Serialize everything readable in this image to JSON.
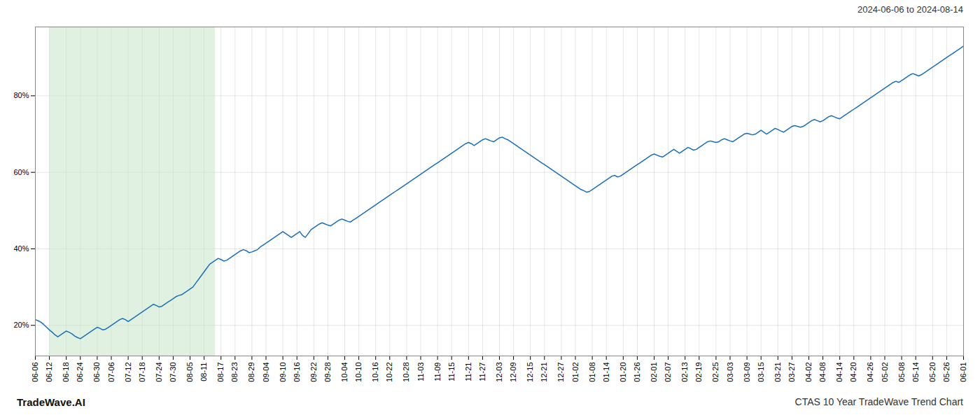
{
  "chart_data": {
    "type": "line",
    "title": "CTAS 10 Year TradeWave Trend Chart",
    "subtitle": "2024-06-06 to 2024-08-14",
    "annotations": [
      "TradeWave.AI"
    ],
    "color": "#1a6fba",
    "grid": true,
    "ylim": [
      12,
      98
    ],
    "yticks": [
      {
        "value": 20,
        "label": "20%"
      },
      {
        "value": 40,
        "label": "40%"
      },
      {
        "value": 60,
        "label": "60%"
      },
      {
        "value": 80,
        "label": "80%"
      }
    ],
    "shaded_span": {
      "from": 5,
      "to": 64,
      "color": "#c8e6c8"
    },
    "categories": [
      "06-06",
      null,
      null,
      null,
      null,
      "06-12",
      null,
      null,
      null,
      null,
      null,
      "06-18",
      null,
      null,
      null,
      null,
      "06-24",
      null,
      null,
      null,
      null,
      null,
      "06-30",
      null,
      null,
      null,
      null,
      "07-06",
      null,
      null,
      null,
      null,
      null,
      "07-12",
      null,
      null,
      null,
      null,
      "07-18",
      null,
      null,
      null,
      null,
      null,
      "07-24",
      null,
      null,
      null,
      null,
      "07-30",
      null,
      null,
      null,
      null,
      null,
      "08-05",
      null,
      null,
      null,
      null,
      "08-11",
      null,
      null,
      null,
      null,
      null,
      "08-17",
      null,
      null,
      null,
      null,
      "08-23",
      null,
      null,
      null,
      null,
      null,
      "08-29",
      null,
      null,
      null,
      null,
      "09-04",
      null,
      null,
      null,
      null,
      null,
      "09-10",
      null,
      null,
      null,
      null,
      "09-16",
      null,
      null,
      null,
      null,
      null,
      "09-22",
      null,
      null,
      null,
      null,
      "09-28",
      null,
      null,
      null,
      null,
      null,
      "10-04",
      null,
      null,
      null,
      null,
      "10-10",
      null,
      null,
      null,
      null,
      null,
      "10-16",
      null,
      null,
      null,
      null,
      "10-22",
      null,
      null,
      null,
      null,
      null,
      "10-28",
      null,
      null,
      null,
      null,
      "11-03",
      null,
      null,
      null,
      null,
      null,
      "11-09",
      null,
      null,
      null,
      null,
      "11-15",
      null,
      null,
      null,
      null,
      null,
      "11-21",
      null,
      null,
      null,
      null,
      "11-27",
      null,
      null,
      null,
      null,
      null,
      "12-03",
      null,
      null,
      null,
      null,
      "12-09",
      null,
      null,
      null,
      null,
      null,
      "12-15",
      null,
      null,
      null,
      null,
      "12-21",
      null,
      null,
      null,
      null,
      null,
      "12-27",
      null,
      null,
      null,
      null,
      "01-02",
      null,
      null,
      null,
      null,
      null,
      "01-08",
      null,
      null,
      null,
      null,
      "01-14",
      null,
      null,
      null,
      null,
      null,
      "01-20",
      null,
      null,
      null,
      null,
      "01-26",
      null,
      null,
      null,
      null,
      null,
      "02-01",
      null,
      null,
      null,
      null,
      "02-07",
      null,
      null,
      null,
      null,
      null,
      "02-13",
      null,
      null,
      null,
      null,
      "02-19",
      null,
      null,
      null,
      null,
      null,
      "02-25",
      null,
      null,
      null,
      null,
      "03-03",
      null,
      null,
      null,
      null,
      null,
      "03-09",
      null,
      null,
      null,
      null,
      "03-15",
      null,
      null,
      null,
      null,
      null,
      "03-21",
      null,
      null,
      null,
      null,
      "03-27",
      null,
      null,
      null,
      null,
      null,
      "04-02",
      null,
      null,
      null,
      null,
      "04-08",
      null,
      null,
      null,
      null,
      null,
      "04-14",
      null,
      null,
      null,
      null,
      "04-20",
      null,
      null,
      null,
      null,
      null,
      "04-26",
      null,
      null,
      null,
      null,
      "05-02",
      null,
      null,
      null,
      null,
      null,
      "05-08",
      null,
      null,
      null,
      null,
      "05-14",
      null,
      null,
      null,
      null,
      null,
      "05-20",
      null,
      null,
      null,
      null,
      "05-26",
      null,
      null,
      null,
      null,
      null,
      "06-01"
    ],
    "values": [
      21.5,
      21.2,
      20.8,
      20.2,
      19.5,
      18.8,
      18.2,
      17.5,
      17.0,
      17.5,
      18.0,
      18.5,
      18.2,
      17.8,
      17.2,
      16.8,
      16.5,
      17.0,
      17.5,
      18.0,
      18.5,
      19.0,
      19.5,
      19.2,
      18.8,
      19.0,
      19.5,
      20.0,
      20.5,
      21.0,
      21.5,
      21.8,
      21.5,
      21.0,
      21.5,
      22.0,
      22.5,
      23.0,
      23.5,
      24.0,
      24.5,
      25.0,
      25.5,
      25.2,
      24.8,
      25.0,
      25.5,
      26.0,
      26.5,
      27.0,
      27.5,
      27.8,
      28.0,
      28.5,
      29.0,
      29.5,
      30.0,
      31.0,
      32.0,
      33.0,
      34.0,
      35.0,
      36.0,
      36.5,
      37.0,
      37.5,
      37.2,
      36.8,
      37.0,
      37.5,
      38.0,
      38.5,
      39.0,
      39.5,
      39.8,
      39.5,
      39.0,
      39.2,
      39.5,
      39.8,
      40.5,
      41.0,
      41.5,
      42.0,
      42.5,
      43.0,
      43.5,
      44.0,
      44.5,
      44.0,
      43.5,
      43.0,
      43.5,
      44.0,
      44.5,
      43.5,
      43.0,
      44.0,
      45.0,
      45.5,
      46.0,
      46.5,
      46.8,
      46.5,
      46.2,
      46.0,
      46.5,
      47.0,
      47.5,
      47.8,
      47.5,
      47.2,
      47.0,
      47.5,
      48.0,
      48.5,
      49.0,
      49.5,
      50.0,
      50.5,
      51.0,
      51.5,
      52.0,
      52.5,
      53.0,
      53.5,
      54.0,
      54.5,
      55.0,
      55.5,
      56.0,
      56.5,
      57.0,
      57.5,
      58.0,
      58.5,
      59.0,
      59.5,
      60.0,
      60.5,
      61.0,
      61.5,
      62.0,
      62.5,
      63.0,
      63.5,
      64.0,
      64.5,
      65.0,
      65.5,
      66.0,
      66.5,
      67.0,
      67.5,
      67.8,
      67.5,
      67.0,
      67.5,
      68.0,
      68.5,
      68.8,
      68.5,
      68.2,
      68.0,
      68.5,
      69.0,
      69.2,
      68.8,
      68.5,
      68.0,
      67.5,
      67.0,
      66.5,
      66.0,
      65.5,
      65.0,
      64.5,
      64.0,
      63.5,
      63.0,
      62.5,
      62.0,
      61.5,
      61.0,
      60.5,
      60.0,
      59.5,
      59.0,
      58.5,
      58.0,
      57.5,
      57.0,
      56.5,
      56.0,
      55.5,
      55.2,
      54.8,
      55.0,
      55.5,
      56.0,
      56.5,
      57.0,
      57.5,
      58.0,
      58.5,
      59.0,
      59.2,
      58.8,
      59.0,
      59.5,
      60.0,
      60.5,
      61.0,
      61.5,
      62.0,
      62.5,
      63.0,
      63.5,
      64.0,
      64.5,
      64.8,
      64.5,
      64.2,
      64.0,
      64.5,
      65.0,
      65.5,
      66.0,
      65.5,
      65.0,
      65.5,
      66.0,
      66.5,
      66.2,
      65.8,
      66.0,
      66.5,
      67.0,
      67.5,
      68.0,
      68.2,
      68.0,
      67.8,
      68.0,
      68.5,
      68.8,
      68.5,
      68.2,
      68.0,
      68.5,
      69.0,
      69.5,
      70.0,
      70.2,
      70.0,
      69.8,
      70.0,
      70.5,
      71.0,
      70.5,
      70.0,
      70.5,
      71.0,
      71.5,
      71.2,
      70.8,
      70.5,
      71.0,
      71.5,
      72.0,
      72.2,
      72.0,
      71.8,
      72.0,
      72.5,
      73.0,
      73.5,
      73.8,
      73.5,
      73.2,
      73.5,
      74.0,
      74.5,
      74.8,
      74.5,
      74.2,
      74.0,
      74.5,
      75.0,
      75.5,
      76.0,
      76.5,
      77.0,
      77.5,
      78.0,
      78.5,
      79.0,
      79.5,
      80.0,
      80.5,
      81.0,
      81.5,
      82.0,
      82.5,
      83.0,
      83.5,
      83.8,
      83.5,
      84.0,
      84.5,
      85.0,
      85.5,
      85.8,
      85.5,
      85.2,
      85.5,
      86.0,
      86.5,
      87.0,
      87.5,
      88.0,
      88.5,
      89.0,
      89.5,
      90.0,
      90.5,
      91.0,
      91.5,
      92.0,
      92.5,
      93.0
    ]
  }
}
